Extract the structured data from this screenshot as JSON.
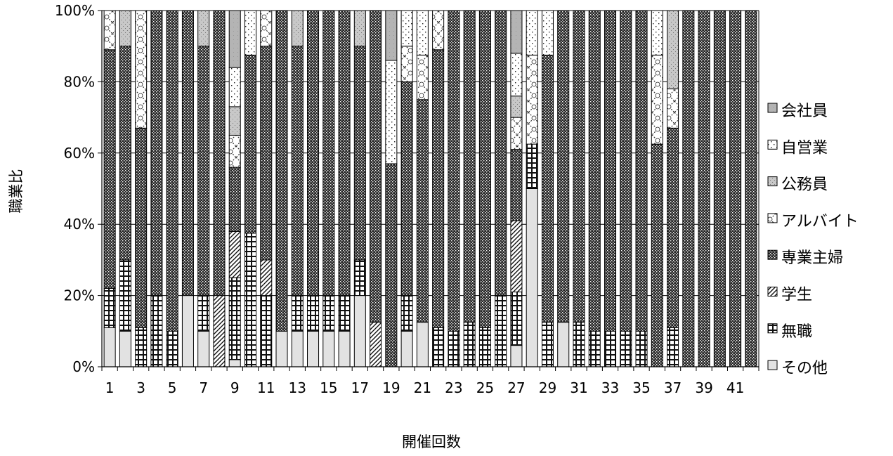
{
  "chart_data": {
    "type": "bar",
    "stacked": "percent",
    "xlabel": "開催回数",
    "ylabel": "職業比",
    "ylim": [
      0,
      100
    ],
    "yticks": [
      "0%",
      "20%",
      "40%",
      "60%",
      "80%",
      "100%"
    ],
    "xtick_labels": [
      "1",
      "3",
      "5",
      "7",
      "9",
      "11",
      "13",
      "15",
      "17",
      "19",
      "21",
      "23",
      "25",
      "27",
      "29",
      "31",
      "33",
      "35",
      "37",
      "39",
      "41"
    ],
    "categories": [
      1,
      2,
      3,
      4,
      5,
      6,
      7,
      8,
      9,
      10,
      11,
      12,
      13,
      14,
      15,
      16,
      17,
      18,
      19,
      20,
      21,
      22,
      23,
      24,
      25,
      26,
      27,
      28,
      29,
      30,
      31,
      32,
      33,
      34,
      35,
      36,
      37,
      38,
      39,
      40,
      41,
      42
    ],
    "legend_position": "right",
    "grid": "horizontal",
    "series": [
      {
        "name": "その他",
        "pattern": "plain",
        "values": [
          11,
          10,
          0,
          0,
          0,
          20,
          10,
          0,
          2,
          0,
          0,
          10,
          10,
          10,
          10,
          10,
          20,
          0,
          0,
          10,
          12.5,
          0,
          0,
          0,
          0,
          0,
          6,
          50,
          0,
          12.5,
          0,
          0,
          0,
          0,
          0,
          0,
          0,
          0,
          0,
          0,
          0,
          0
        ]
      },
      {
        "name": "無職",
        "pattern": "grid",
        "values": [
          11,
          20,
          11,
          20,
          10,
          0,
          10,
          0,
          23,
          37.5,
          20,
          0,
          10,
          10,
          10,
          10,
          10,
          0,
          0,
          10,
          0,
          11,
          10,
          12.5,
          11,
          20,
          15,
          12.5,
          12.5,
          0,
          12.5,
          10,
          10,
          10,
          10,
          0,
          11,
          0,
          0,
          0,
          0,
          0
        ]
      },
      {
        "name": "学生",
        "pattern": "diagonal",
        "values": [
          0,
          0,
          0,
          0,
          0,
          0,
          0,
          20,
          13,
          0,
          10,
          0,
          0,
          0,
          0,
          0,
          0,
          12.5,
          0,
          0,
          0,
          0,
          0,
          0,
          0,
          0,
          20,
          0,
          0,
          0,
          0,
          0,
          0,
          0,
          0,
          0,
          0,
          0,
          0,
          0,
          0,
          0
        ]
      },
      {
        "name": "専業主婦",
        "pattern": "checker",
        "values": [
          67,
          60,
          56,
          80,
          90,
          80,
          70,
          80,
          18,
          50,
          60,
          90,
          70,
          80,
          80,
          80,
          60,
          87.5,
          57,
          60,
          62.5,
          78,
          90,
          87.5,
          89,
          80,
          20,
          0,
          75,
          87.5,
          87.5,
          90,
          90,
          90,
          90,
          62.5,
          56,
          100,
          100,
          100,
          100,
          100
        ]
      },
      {
        "name": "アルバイト",
        "pattern": "cross",
        "values": [
          11,
          0,
          33,
          0,
          0,
          0,
          0,
          0,
          9,
          0,
          10,
          0,
          0,
          0,
          0,
          0,
          0,
          0,
          0,
          10,
          12.5,
          11,
          0,
          0,
          0,
          0,
          9,
          25,
          0,
          0,
          0,
          0,
          0,
          0,
          0,
          25,
          11,
          0,
          0,
          0,
          0,
          0
        ]
      },
      {
        "name": "公務員",
        "pattern": "dots",
        "values": [
          0,
          10,
          0,
          0,
          0,
          0,
          10,
          0,
          8,
          0,
          0,
          0,
          10,
          0,
          0,
          0,
          10,
          0,
          0,
          0,
          0,
          0,
          0,
          0,
          0,
          0,
          6,
          0,
          0,
          0,
          0,
          0,
          0,
          0,
          0,
          0,
          22,
          0,
          0,
          0,
          0,
          0
        ]
      },
      {
        "name": "自営業",
        "pattern": "sparse",
        "values": [
          0,
          0,
          0,
          0,
          0,
          0,
          0,
          0,
          11,
          12.5,
          0,
          0,
          0,
          0,
          0,
          0,
          0,
          0,
          29,
          10,
          12.5,
          0,
          0,
          0,
          0,
          0,
          12,
          12.5,
          12.5,
          0,
          0,
          0,
          0,
          0,
          0,
          12.5,
          0,
          0,
          0,
          0,
          0,
          0
        ]
      },
      {
        "name": "会社員",
        "pattern": "light-gray",
        "values": [
          0,
          0,
          0,
          0,
          0,
          0,
          0,
          0,
          16,
          0,
          0,
          0,
          0,
          0,
          0,
          0,
          0,
          0,
          14,
          0,
          0,
          0,
          0,
          0,
          0,
          0,
          12,
          0,
          0,
          0,
          0,
          0,
          0,
          0,
          0,
          0,
          0,
          0,
          0,
          0,
          0,
          0
        ]
      }
    ],
    "legend_order": [
      "会社員",
      "自営業",
      "公務員",
      "アルバイト",
      "専業主婦",
      "学生",
      "無職",
      "その他"
    ]
  }
}
